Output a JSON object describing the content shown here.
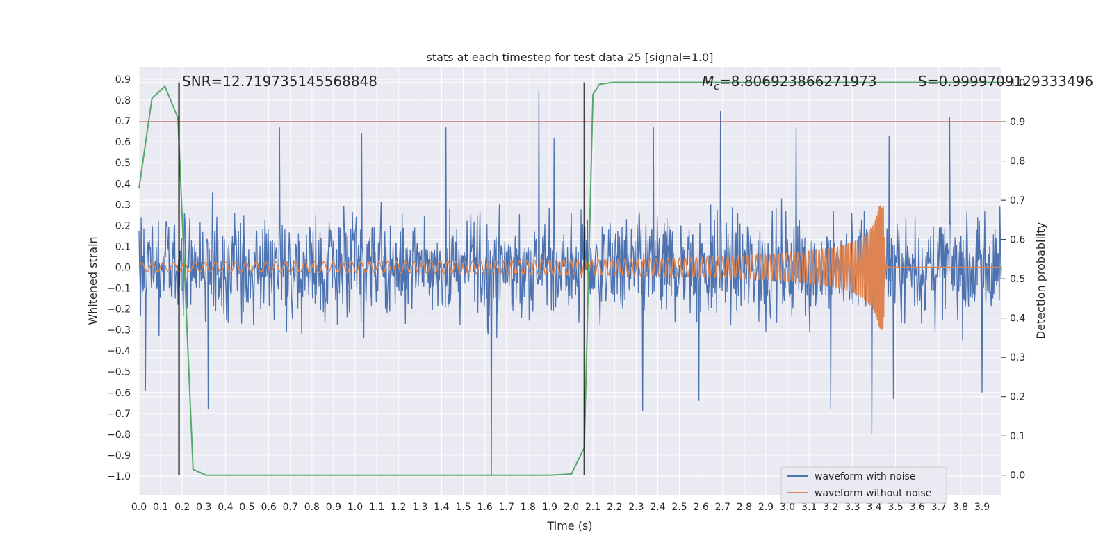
{
  "chart_data": {
    "type": "line",
    "title": "stats at each timestep for test data 25 [signal=1.0]",
    "xlabel": "Time (s)",
    "ylabel": "Whitened strain",
    "y2label": "Detection probability",
    "xlim": [
      0.0,
      3.99
    ],
    "ylim": [
      -1.09,
      0.96
    ],
    "y2lim": [
      -0.05,
      1.04
    ],
    "xticks": [
      0.0,
      0.1,
      0.2,
      0.3,
      0.4,
      0.5,
      0.6,
      0.7,
      0.8,
      0.9,
      1.0,
      1.1,
      1.2,
      1.3,
      1.4,
      1.5,
      1.6,
      1.7,
      1.8,
      1.9,
      2.0,
      2.1,
      2.2,
      2.3,
      2.4,
      2.5,
      2.6,
      2.7,
      2.8,
      2.9,
      3.0,
      3.1,
      3.2,
      3.3,
      3.4,
      3.5,
      3.6,
      3.7,
      3.8,
      3.9
    ],
    "yticks": [
      -1.0,
      -0.9,
      -0.8,
      -0.7,
      -0.6,
      -0.5,
      -0.4,
      -0.3,
      -0.2,
      -0.1,
      0.0,
      0.1,
      0.2,
      0.3,
      0.4,
      0.5,
      0.6,
      0.7,
      0.8,
      0.9
    ],
    "y2ticks": [
      0.0,
      0.1,
      0.2,
      0.3,
      0.4,
      0.5,
      0.6,
      0.7,
      0.8,
      0.9,
      1.0
    ],
    "annotations": {
      "snr": "SNR=12.719735145568848",
      "mc_label": "M",
      "mc_sub": "c",
      "mc_value": "=8.806923866271973",
      "s": "S=0.9999709129333496"
    },
    "vlines": [
      0.185,
      2.06
    ],
    "threshold": 0.9,
    "series": [
      {
        "name": "waveform with noise",
        "color": "#4c72b0",
        "description": "whitened strain with noise, amplitude roughly within +/-0.5 with spikes",
        "spikes": [
          [
            0.03,
            -0.59
          ],
          [
            0.34,
            0.36
          ],
          [
            0.32,
            -0.68
          ],
          [
            0.65,
            0.67
          ],
          [
            1.03,
            0.64
          ],
          [
            1.42,
            0.67
          ],
          [
            1.63,
            -1.0
          ],
          [
            1.85,
            0.85
          ],
          [
            1.92,
            0.62
          ],
          [
            2.33,
            -0.69
          ],
          [
            2.38,
            0.67
          ],
          [
            2.69,
            0.75
          ],
          [
            3.04,
            0.67
          ],
          [
            3.2,
            -0.68
          ],
          [
            3.39,
            -0.8
          ],
          [
            3.47,
            0.63
          ],
          [
            3.75,
            0.72
          ],
          [
            3.9,
            -0.6
          ],
          [
            2.59,
            -0.64
          ],
          [
            3.49,
            -0.63
          ]
        ]
      },
      {
        "name": "waveform without noise",
        "color": "#dd8452",
        "description": "chirp signal, amplitude grows until merger near 3.44 s then ringdown"
      },
      {
        "name": "detection probability",
        "color": "#55a868",
        "axis": "y2",
        "x": [
          0.0,
          0.06,
          0.12,
          0.18,
          0.25,
          0.31,
          0.5,
          1.0,
          1.5,
          1.9,
          2.0,
          2.06,
          2.1,
          2.13,
          2.19,
          2.5,
          3.0,
          3.99
        ],
        "values": [
          0.73,
          0.96,
          0.99,
          0.91,
          0.015,
          0.0,
          0.0,
          0.0,
          0.0,
          0.0,
          0.003,
          0.07,
          0.97,
          0.995,
          1.0,
          1.0,
          1.0,
          1.0
        ]
      }
    ],
    "legend": {
      "location": "lower-right",
      "entries": [
        "waveform with noise",
        "waveform without noise"
      ]
    },
    "colors": {
      "background": "#eaeaf2",
      "grid": "#ffffff",
      "vline": "#000000",
      "threshold": "#c44e52"
    }
  }
}
